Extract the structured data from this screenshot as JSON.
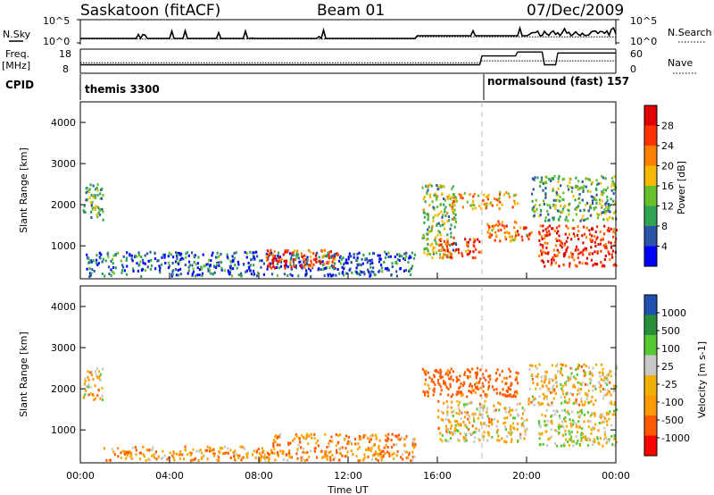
{
  "header": {
    "title": "Saskatoon (fitACF)",
    "beam": "Beam 01",
    "date": "07/Dec/2009"
  },
  "aux_labels": {
    "nsky": "N.Sky",
    "nsearch": "N.Search",
    "freq": "Freq.",
    "mhz": "[MHz]",
    "nave": "Nave",
    "cpid": "CPID",
    "noise_top": "10^5",
    "noise_bottom": "10^0",
    "noise_top_r": "10^5",
    "noise_bottom_r": "10^0",
    "freq_top": "18",
    "freq_bottom": "8",
    "nave_top": "60",
    "nave_bottom": "0"
  },
  "cpid_segments": [
    {
      "label": "themis 3300",
      "start": "00:00",
      "end": "18:00"
    },
    {
      "label": "normalsound (fast) 157",
      "start": "18:00",
      "end": "00:00"
    }
  ],
  "colors": {
    "power": [
      "#0000ff",
      "#2a54a8",
      "#31a354",
      "#66c02a",
      "#f5b800",
      "#ff7f00",
      "#ff3300",
      "#e00000"
    ],
    "velocity": [
      "#ff0000",
      "#ff5a00",
      "#ff9b00",
      "#f0b000",
      "#c8c8c8",
      "#55c832",
      "#2a8f3a",
      "#2050b0"
    ]
  },
  "chart_data": [
    {
      "type": "heatmap",
      "parameter": "Power",
      "ylabel": "Slant Range [km]",
      "xlabel": "",
      "x_ticks": [
        "00:00",
        "04:00",
        "08:00",
        "12:00",
        "16:00",
        "20:00",
        "00:00"
      ],
      "y_ticks": [
        1000,
        2000,
        3000,
        4000
      ],
      "ylim": [
        200,
        4500
      ],
      "xlim_hours": [
        0,
        24
      ],
      "colorbar": {
        "label": "Power [dB]",
        "ticks": [
          "4",
          "8",
          "12",
          "16",
          "20",
          "24",
          "28"
        ],
        "range": [
          0,
          30
        ]
      },
      "regions": [
        {
          "t0": 0.1,
          "t1": 1.0,
          "r0": 1600,
          "r1": 2500,
          "value": 12
        },
        {
          "t0": 0.2,
          "t1": 15.0,
          "r0": 250,
          "r1": 850,
          "value": 6
        },
        {
          "t0": 8.3,
          "t1": 11.6,
          "r0": 450,
          "r1": 900,
          "value": 26
        },
        {
          "t0": 15.3,
          "t1": 16.8,
          "r0": 700,
          "r1": 2500,
          "value": 14
        },
        {
          "t0": 16.0,
          "t1": 18.0,
          "r0": 700,
          "r1": 1200,
          "value": 26
        },
        {
          "t0": 16.5,
          "t1": 19.6,
          "r0": 1900,
          "r1": 2300,
          "value": 20
        },
        {
          "t0": 18.2,
          "t1": 20.2,
          "r0": 1100,
          "r1": 1600,
          "value": 22
        },
        {
          "t0": 20.5,
          "t1": 24.0,
          "r0": 500,
          "r1": 1500,
          "value": 28
        },
        {
          "t0": 20.2,
          "t1": 24.0,
          "r0": 1600,
          "r1": 2700,
          "value": 12
        }
      ]
    },
    {
      "type": "heatmap",
      "parameter": "Velocity",
      "ylabel": "Slant Range [km]",
      "xlabel": "Time UT",
      "x_ticks": [
        "00:00",
        "04:00",
        "08:00",
        "12:00",
        "16:00",
        "20:00",
        "00:00"
      ],
      "y_ticks": [
        1000,
        2000,
        3000,
        4000
      ],
      "ylim": [
        200,
        4500
      ],
      "xlim_hours": [
        0,
        24
      ],
      "colorbar": {
        "label": "Velocity [m s-1]",
        "ticks": [
          "1000",
          "500",
          "100",
          "25",
          "-25",
          "-100",
          "-500",
          "-1000"
        ]
      },
      "regions": [
        {
          "t0": 0.1,
          "t1": 1.0,
          "r0": 1700,
          "r1": 2500,
          "value": 0
        },
        {
          "t0": 1.0,
          "t1": 8.5,
          "r0": 250,
          "r1": 600,
          "value": -60
        },
        {
          "t0": 8.5,
          "t1": 15.0,
          "r0": 250,
          "r1": 900,
          "value": -80
        },
        {
          "t0": 15.3,
          "t1": 19.6,
          "r0": 1800,
          "r1": 2500,
          "value": -200
        },
        {
          "t0": 16.0,
          "t1": 20.0,
          "r0": 700,
          "r1": 1700,
          "value": 0
        },
        {
          "t0": 20.5,
          "t1": 24.0,
          "r0": 600,
          "r1": 1500,
          "value": 60
        },
        {
          "t0": 20.0,
          "t1": 24.0,
          "r0": 1600,
          "r1": 2600,
          "value": 0
        }
      ]
    }
  ]
}
